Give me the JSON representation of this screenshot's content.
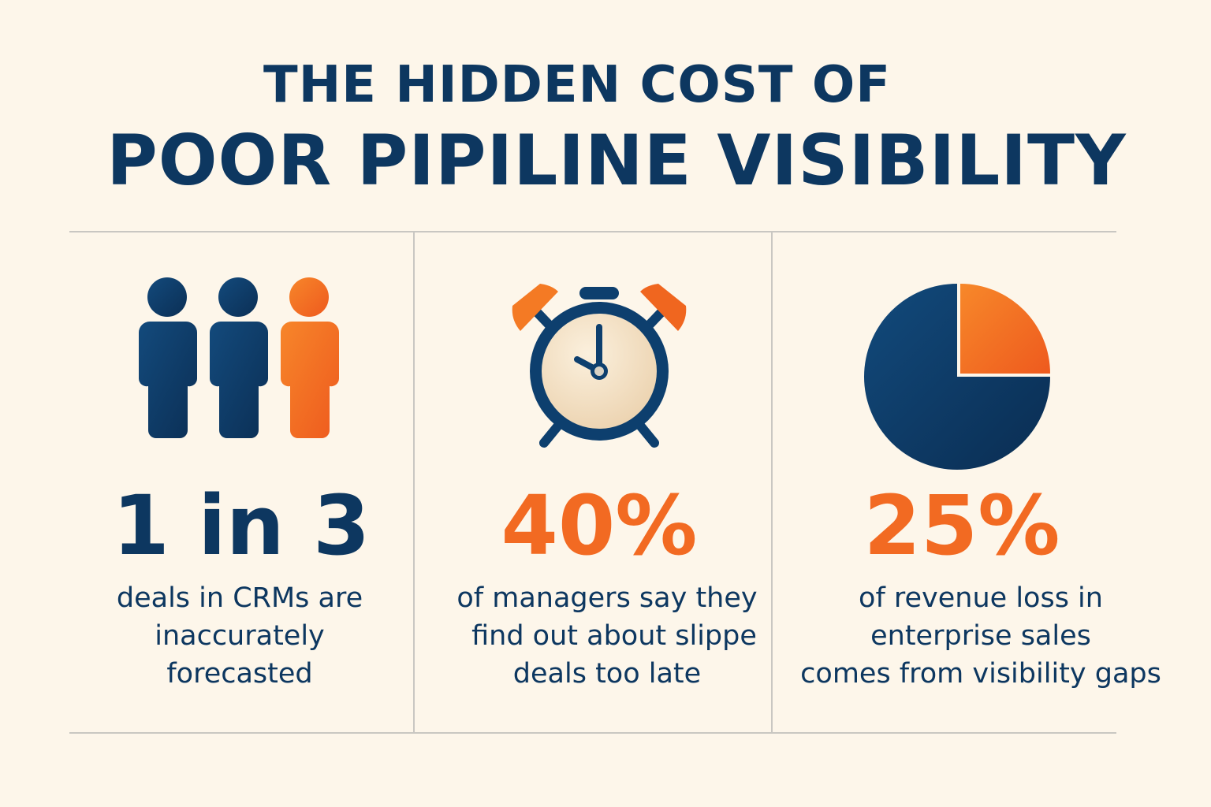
{
  "title": {
    "line1": "THE HIDDEN COST OF",
    "line2": "POOR PIPILINE VISIBILITY"
  },
  "colors": {
    "background": "#fdf6ea",
    "navy": "#0d3760",
    "orange": "#f26a22",
    "divider": "#c9c7c2"
  },
  "stats": [
    {
      "icon": "people-icon",
      "value": "1 in 3",
      "lines": [
        "deals in CRMs are",
        "inaccurately",
        "forecasted"
      ]
    },
    {
      "icon": "alarm-clock-icon",
      "value": "40%",
      "lines": [
        "of managers say they",
        "find out about slippe",
        "deals too late"
      ]
    },
    {
      "icon": "pie-chart-icon",
      "value": "25%",
      "highlighted_share_percent": 25,
      "lines": [
        "of revenue loss in",
        "enterprise sales",
        "comes from visibility gaps"
      ]
    }
  ]
}
